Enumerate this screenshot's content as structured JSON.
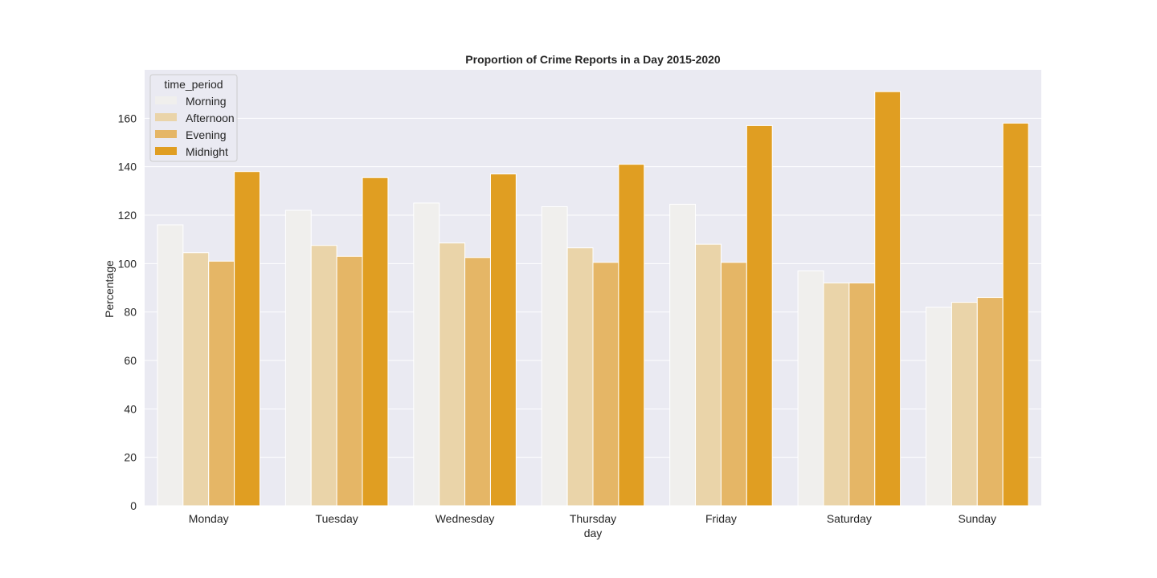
{
  "chart_data": {
    "type": "bar",
    "title": "Proportion of Crime Reports in a Day 2015-2020",
    "xlabel": "day",
    "ylabel": "Percentage",
    "categories": [
      "Monday",
      "Tuesday",
      "Wednesday",
      "Thursday",
      "Friday",
      "Saturday",
      "Sunday"
    ],
    "ylim": [
      0,
      180
    ],
    "yticks": [
      0,
      20,
      40,
      60,
      80,
      100,
      120,
      140,
      160
    ],
    "grid": true,
    "legend": {
      "title": "time_period",
      "placement": "top-left"
    },
    "series": [
      {
        "name": "Morning",
        "color": "#f0efed",
        "values": [
          116,
          122,
          125,
          123.5,
          124.5,
          97,
          82
        ]
      },
      {
        "name": "Afternoon",
        "color": "#ead4a9",
        "values": [
          104.5,
          107.5,
          108.5,
          106.5,
          108,
          92,
          84
        ]
      },
      {
        "name": "Evening",
        "color": "#e5b666",
        "values": [
          101,
          103,
          102.5,
          100.5,
          100.5,
          92,
          86
        ]
      },
      {
        "name": "Midnight",
        "color": "#e09e22",
        "values": [
          138,
          135.5,
          137,
          141,
          157,
          171,
          158
        ]
      }
    ]
  },
  "colors": {
    "plot_background": "#eaeaf2",
    "grid": "#ffffff",
    "text": "#262626"
  }
}
